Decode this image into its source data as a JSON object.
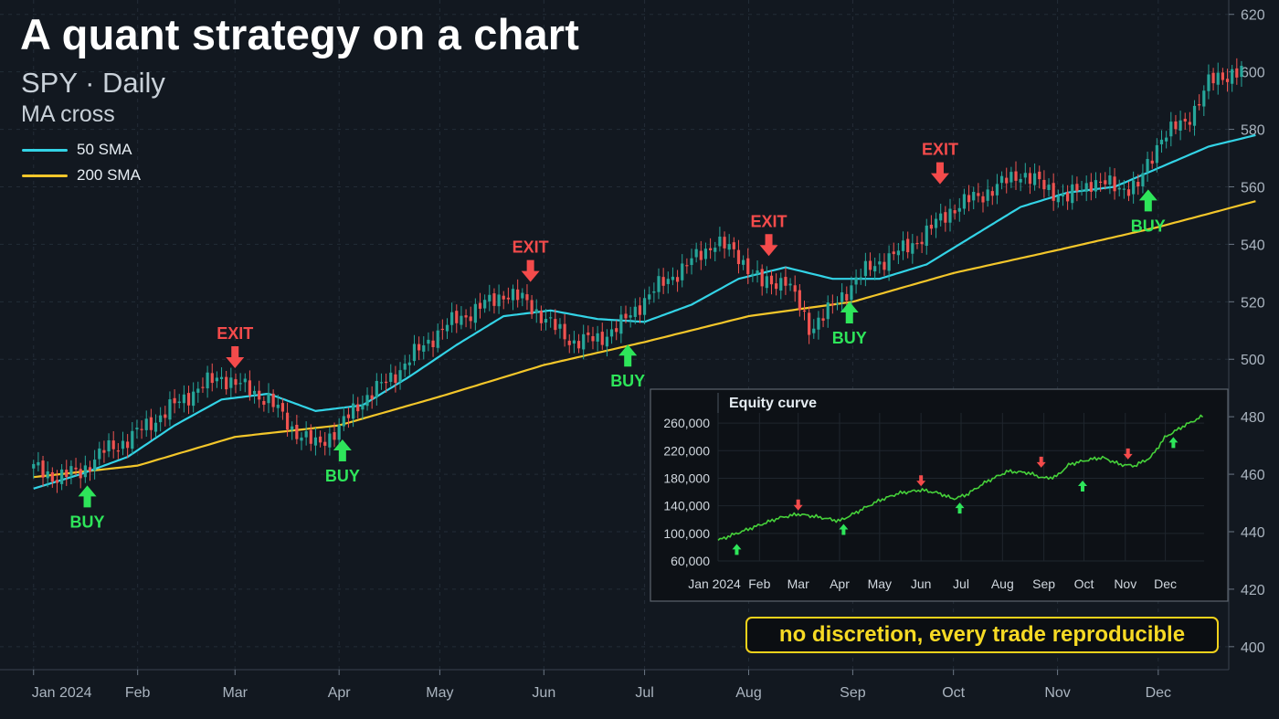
{
  "header": {
    "title": "A quant strategy on a chart",
    "subtitle": "SPY · Daily",
    "strategy": "MA cross"
  },
  "legend": [
    {
      "label": "50 SMA",
      "color": "#33d3e6"
    },
    {
      "label": "200 SMA",
      "color": "#f3c62a"
    }
  ],
  "callout": "no discretion, every trade reproducible",
  "colors": {
    "background": "#121820",
    "grid": "#232c37",
    "up_candle": "#26a69a",
    "down_candle": "#ef5350",
    "buy": "#2ee55a",
    "exit": "#f44b4b",
    "equity": "#46d13a"
  },
  "chart_data": [
    {
      "type": "candlestick",
      "name": "SPY",
      "x_ticks": [
        "Jan 2024",
        "Feb",
        "Mar",
        "Apr",
        "May",
        "Jun",
        "Jul",
        "Aug",
        "Sep",
        "Oct",
        "Nov",
        "Dec"
      ],
      "y_ticks": [
        400,
        420,
        440,
        460,
        480,
        500,
        520,
        540,
        560,
        580,
        600,
        620
      ],
      "ylim": [
        392,
        625
      ],
      "y_axis_side": "right",
      "grid": true,
      "close_path": [
        [
          "2024-01-01",
          462
        ],
        [
          "2024-01-08",
          459
        ],
        [
          "2024-01-15",
          461
        ],
        [
          "2024-01-22",
          468
        ],
        [
          "2024-01-29",
          472
        ],
        [
          "2024-02-05",
          478
        ],
        [
          "2024-02-12",
          484
        ],
        [
          "2024-02-19",
          490
        ],
        [
          "2024-02-26",
          494
        ],
        [
          "2024-03-04",
          490
        ],
        [
          "2024-03-11",
          486
        ],
        [
          "2024-03-18",
          476
        ],
        [
          "2024-03-25",
          470
        ],
        [
          "2024-04-01",
          476
        ],
        [
          "2024-04-08",
          486
        ],
        [
          "2024-04-15",
          492
        ],
        [
          "2024-04-22",
          500
        ],
        [
          "2024-04-29",
          508
        ],
        [
          "2024-05-06",
          514
        ],
        [
          "2024-05-13",
          518
        ],
        [
          "2024-05-20",
          523
        ],
        [
          "2024-05-27",
          520
        ],
        [
          "2024-06-03",
          512
        ],
        [
          "2024-06-10",
          506
        ],
        [
          "2024-06-17",
          507
        ],
        [
          "2024-06-24",
          512
        ],
        [
          "2024-07-01",
          521
        ],
        [
          "2024-07-08",
          528
        ],
        [
          "2024-07-15",
          534
        ],
        [
          "2024-07-22",
          541
        ],
        [
          "2024-07-29",
          536
        ],
        [
          "2024-08-05",
          526
        ],
        [
          "2024-08-12",
          528
        ],
        [
          "2024-08-19",
          511
        ],
        [
          "2024-08-26",
          518
        ],
        [
          "2024-09-02",
          528
        ],
        [
          "2024-09-09",
          534
        ],
        [
          "2024-09-16",
          538
        ],
        [
          "2024-09-23",
          544
        ],
        [
          "2024-09-30",
          552
        ],
        [
          "2024-10-07",
          556
        ],
        [
          "2024-10-14",
          560
        ],
        [
          "2024-10-21",
          565
        ],
        [
          "2024-10-28",
          560
        ],
        [
          "2024-11-04",
          556
        ],
        [
          "2024-11-11",
          562
        ],
        [
          "2024-11-18",
          560
        ],
        [
          "2024-11-25",
          560
        ],
        [
          "2024-12-02",
          578
        ],
        [
          "2024-12-09",
          582
        ],
        [
          "2024-12-16",
          596
        ],
        [
          "2024-12-23",
          600
        ]
      ],
      "series": [
        {
          "name": "50 SMA",
          "color": "#33d3e6",
          "points": [
            [
              "2024-01-01",
              455
            ],
            [
              "2024-01-15",
              460
            ],
            [
              "2024-01-29",
              466
            ],
            [
              "2024-02-12",
              477
            ],
            [
              "2024-02-26",
              486
            ],
            [
              "2024-03-11",
              488
            ],
            [
              "2024-03-25",
              482
            ],
            [
              "2024-04-08",
              484
            ],
            [
              "2024-04-22",
              494
            ],
            [
              "2024-05-06",
              505
            ],
            [
              "2024-05-20",
              515
            ],
            [
              "2024-06-03",
              517
            ],
            [
              "2024-06-17",
              514
            ],
            [
              "2024-07-01",
              513
            ],
            [
              "2024-07-15",
              519
            ],
            [
              "2024-07-29",
              528
            ],
            [
              "2024-08-12",
              532
            ],
            [
              "2024-08-26",
              528
            ],
            [
              "2024-09-09",
              528
            ],
            [
              "2024-09-23",
              533
            ],
            [
              "2024-10-07",
              543
            ],
            [
              "2024-10-21",
              553
            ],
            [
              "2024-11-04",
              558
            ],
            [
              "2024-11-18",
              560
            ],
            [
              "2024-12-02",
              567
            ],
            [
              "2024-12-16",
              574
            ],
            [
              "2024-12-30",
              578
            ]
          ]
        },
        {
          "name": "200 SMA",
          "color": "#f3c62a",
          "points": [
            [
              "2024-01-01",
              459
            ],
            [
              "2024-02-01",
              463
            ],
            [
              "2024-03-01",
              473
            ],
            [
              "2024-04-01",
              477
            ],
            [
              "2024-05-01",
              487
            ],
            [
              "2024-06-01",
              498
            ],
            [
              "2024-07-01",
              506
            ],
            [
              "2024-08-01",
              515
            ],
            [
              "2024-09-01",
              520
            ],
            [
              "2024-10-01",
              530
            ],
            [
              "2024-11-01",
              538
            ],
            [
              "2024-12-01",
              546
            ],
            [
              "2024-12-30",
              555
            ]
          ]
        }
      ],
      "signals": [
        {
          "type": "BUY",
          "date": "2024-01-17",
          "price": 458
        },
        {
          "type": "EXIT",
          "date": "2024-03-01",
          "price": 495
        },
        {
          "type": "BUY",
          "date": "2024-04-02",
          "price": 474
        },
        {
          "type": "EXIT",
          "date": "2024-05-28",
          "price": 525
        },
        {
          "type": "BUY",
          "date": "2024-06-26",
          "price": 507
        },
        {
          "type": "EXIT",
          "date": "2024-08-07",
          "price": 534
        },
        {
          "type": "BUY",
          "date": "2024-08-31",
          "price": 522
        },
        {
          "type": "EXIT",
          "date": "2024-09-27",
          "price": 559
        },
        {
          "type": "BUY",
          "date": "2024-11-28",
          "price": 561
        }
      ]
    },
    {
      "type": "line",
      "title": "Equity curve",
      "x_ticks": [
        "Jan 2024",
        "Feb",
        "Mar",
        "Apr",
        "May",
        "Jun",
        "Jul",
        "Aug",
        "Sep",
        "Oct",
        "Nov",
        "Dec"
      ],
      "y_ticks": [
        60000,
        100000,
        140000,
        180000,
        220000,
        260000
      ],
      "y_tick_labels": [
        "60,000",
        "100,000",
        "140,000",
        "180,000",
        "220,000",
        "260,000"
      ],
      "ylim": [
        60000,
        280000
      ],
      "grid": true,
      "series": [
        {
          "name": "",
          "color": "#46d13a",
          "points": [
            [
              "2024-01-01",
              90000
            ],
            [
              "2024-01-15",
              100000
            ],
            [
              "2024-02-01",
              112000
            ],
            [
              "2024-02-15",
              122000
            ],
            [
              "2024-03-01",
              128000
            ],
            [
              "2024-03-15",
              124000
            ],
            [
              "2024-04-01",
              118000
            ],
            [
              "2024-04-15",
              132000
            ],
            [
              "2024-05-01",
              148000
            ],
            [
              "2024-05-15",
              158000
            ],
            [
              "2024-06-01",
              163000
            ],
            [
              "2024-06-15",
              158000
            ],
            [
              "2024-06-25",
              150000
            ],
            [
              "2024-07-05",
              156000
            ],
            [
              "2024-07-20",
              175000
            ],
            [
              "2024-08-05",
              190000
            ],
            [
              "2024-08-20",
              188000
            ],
            [
              "2024-09-01",
              180000
            ],
            [
              "2024-09-10",
              182000
            ],
            [
              "2024-09-20",
              200000
            ],
            [
              "2024-10-05",
              207000
            ],
            [
              "2024-10-15",
              210000
            ],
            [
              "2024-10-28",
              200000
            ],
            [
              "2024-11-08",
              198000
            ],
            [
              "2024-11-20",
              210000
            ],
            [
              "2024-12-01",
              240000
            ],
            [
              "2024-12-15",
              256000
            ],
            [
              "2024-12-30",
              271000
            ]
          ]
        }
      ],
      "markers": [
        {
          "type": "BUY",
          "date": "2024-01-15",
          "value": 90000
        },
        {
          "type": "EXIT",
          "date": "2024-03-01",
          "value": 128000
        },
        {
          "type": "BUY",
          "date": "2024-04-04",
          "value": 119000
        },
        {
          "type": "EXIT",
          "date": "2024-06-01",
          "value": 163000
        },
        {
          "type": "BUY",
          "date": "2024-06-30",
          "value": 150000
        },
        {
          "type": "EXIT",
          "date": "2024-08-30",
          "value": 190000
        },
        {
          "type": "BUY",
          "date": "2024-09-30",
          "value": 182000
        },
        {
          "type": "EXIT",
          "date": "2024-11-03",
          "value": 202000
        },
        {
          "type": "BUY",
          "date": "2024-12-07",
          "value": 245000
        }
      ]
    }
  ]
}
